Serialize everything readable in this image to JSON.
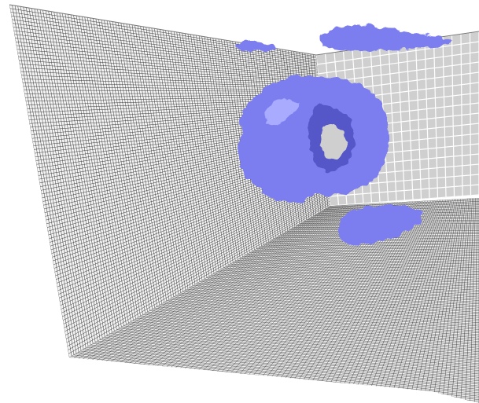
{
  "scene": {
    "kind": "3D render",
    "surfaces": [
      "left-wall-mesh",
      "floor-mesh",
      "back-wall-mesh",
      "top-edge"
    ],
    "objects": [
      "isosurface-blob-main",
      "isosurface-blob-floor",
      "isosurface-blob-top"
    ]
  },
  "colors": {
    "background": "#ffffff",
    "mesh_line": "#2a2a2a",
    "wall_fill": "#f3f3f3",
    "floor_fill": "#ececec",
    "back_panel_fill": "#cfcfcf",
    "back_panel_grid": "#ffffff",
    "blob": "#7c7ef0",
    "blob_shadow": "#5557c8",
    "blob_highlight": "#a9abff"
  }
}
